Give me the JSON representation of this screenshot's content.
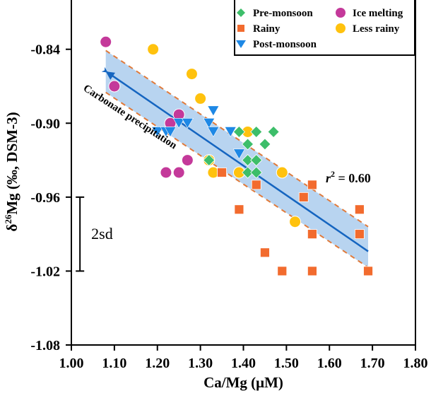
{
  "chart_data": {
    "type": "scatter",
    "title": "",
    "xlabel": "Ca/Mg (μM)",
    "ylabel_parts": {
      "delta": "δ",
      "sup": "26",
      "rest": "Mg (‰, DSM-3)"
    },
    "ylabel": "δ26Mg (‰, DSM-3)",
    "xlim": [
      1.0,
      1.8
    ],
    "ylim": [
      -1.08,
      -0.8
    ],
    "xticks": [
      1.0,
      1.1,
      1.2,
      1.3,
      1.4,
      1.5,
      1.6,
      1.7,
      1.8
    ],
    "xtick_labels": [
      "1.00",
      "1.10",
      "1.20",
      "1.30",
      "1.40",
      "1.50",
      "1.60",
      "1.70",
      "1.80"
    ],
    "yticks": [
      -0.84,
      -0.9,
      -0.96,
      -1.02,
      -1.08
    ],
    "ytick_labels": [
      "-0.84",
      "-0.90",
      "-0.96",
      "-1.02",
      "-1.08"
    ],
    "grid": false,
    "legend_position": "top-right",
    "series": [
      {
        "name": "Pre-monsoon",
        "marker": "diamond",
        "color": "#3DBE6A",
        "points": [
          [
            1.32,
            -0.93
          ],
          [
            1.39,
            -0.907
          ],
          [
            1.43,
            -0.907
          ],
          [
            1.47,
            -0.907
          ],
          [
            1.41,
            -0.917
          ],
          [
            1.45,
            -0.917
          ],
          [
            1.41,
            -0.93
          ],
          [
            1.43,
            -0.93
          ],
          [
            1.41,
            -0.94
          ],
          [
            1.43,
            -0.94
          ]
        ]
      },
      {
        "name": "Rainy",
        "marker": "square",
        "color": "#F26B2E",
        "points": [
          [
            1.35,
            -0.94
          ],
          [
            1.43,
            -0.95
          ],
          [
            1.56,
            -0.95
          ],
          [
            1.54,
            -0.96
          ],
          [
            1.39,
            -0.97
          ],
          [
            1.67,
            -0.97
          ],
          [
            1.56,
            -0.99
          ],
          [
            1.67,
            -0.99
          ],
          [
            1.45,
            -1.005
          ],
          [
            1.49,
            -1.02
          ],
          [
            1.56,
            -1.02
          ],
          [
            1.69,
            -1.02
          ]
        ]
      },
      {
        "name": "Post-monsoon",
        "marker": "triangle-down",
        "color": "#1E88E5",
        "points": [
          [
            1.33,
            -0.89
          ],
          [
            1.32,
            -0.9
          ],
          [
            1.25,
            -0.9
          ],
          [
            1.27,
            -0.9
          ],
          [
            1.2,
            -0.907
          ],
          [
            1.22,
            -0.907
          ],
          [
            1.23,
            -0.907
          ],
          [
            1.33,
            -0.907
          ],
          [
            1.37,
            -0.907
          ],
          [
            1.39,
            -0.925
          ]
        ]
      },
      {
        "name": "Ice melting",
        "marker": "circle",
        "color": "#C4399A",
        "points": [
          [
            1.08,
            -0.834
          ],
          [
            1.1,
            -0.87
          ],
          [
            1.25,
            -0.893
          ],
          [
            1.23,
            -0.9
          ],
          [
            1.27,
            -0.93
          ],
          [
            1.22,
            -0.94
          ],
          [
            1.25,
            -0.94
          ]
        ]
      },
      {
        "name": "Less rainy",
        "marker": "circle",
        "color": "#FFC20E",
        "points": [
          [
            1.19,
            -0.84
          ],
          [
            1.28,
            -0.86
          ],
          [
            1.3,
            -0.88
          ],
          [
            1.41,
            -0.907
          ],
          [
            1.32,
            -0.93
          ],
          [
            1.33,
            -0.94
          ],
          [
            1.39,
            -0.94
          ],
          [
            1.49,
            -0.94
          ],
          [
            1.52,
            -0.98
          ]
        ]
      }
    ],
    "regression": {
      "x_range": [
        1.08,
        1.69
      ],
      "line": [
        [
          1.08,
          -0.858
        ],
        [
          1.69,
          -1.004
        ]
      ],
      "upper": [
        [
          1.08,
          -0.841
        ],
        [
          1.69,
          -0.984
        ]
      ],
      "lower": [
        [
          1.08,
          -0.875
        ],
        [
          1.69,
          -1.017
        ]
      ],
      "line_color": "#1565C0",
      "band_color": "#B8D4F0",
      "bound_color": "#E07A3A",
      "r2_label": "r",
      "r2_sup": "2",
      "r2_value": " = 0.60",
      "arrow_direction": "toward-low-x"
    },
    "annotations": {
      "trend": "Carbonate precipitation",
      "error_bar_label": "2sd",
      "error_bar_range": [
        -0.96,
        -1.02
      ],
      "error_bar_x": 1.02
    }
  }
}
